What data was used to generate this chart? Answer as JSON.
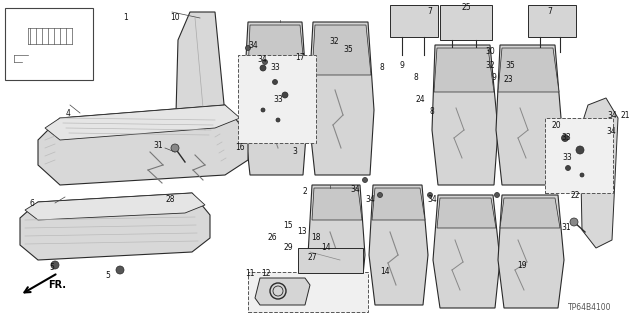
{
  "part_number": "TP64B4100",
  "background_color": "#ffffff",
  "fig_width": 6.4,
  "fig_height": 3.19,
  "dpi": 100
}
